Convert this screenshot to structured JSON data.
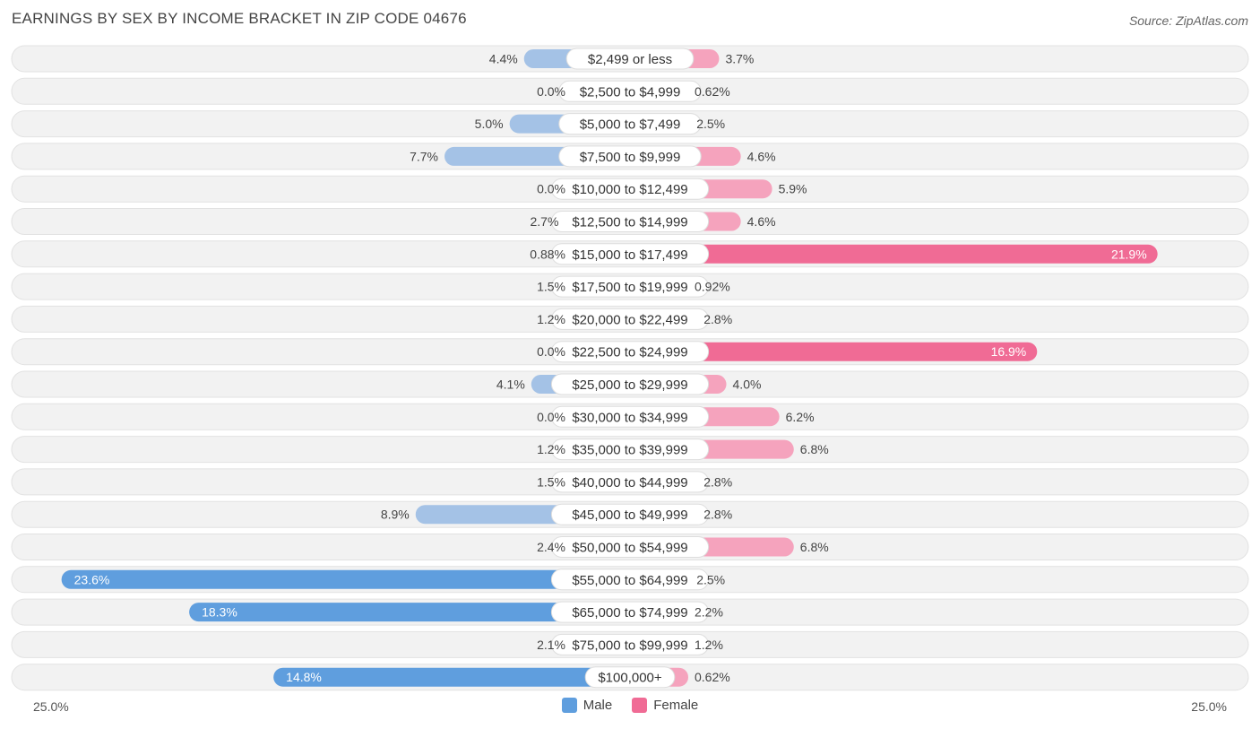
{
  "header": {
    "title": "EARNINGS BY SEX BY INCOME BRACKET IN ZIP CODE 04676",
    "source": "Source: ZipAtlas.com"
  },
  "axis": {
    "left_label": "25.0%",
    "right_label": "25.0%"
  },
  "legend": {
    "male_label": "Male",
    "female_label": "Female"
  },
  "colors": {
    "male": "#a4c2e6",
    "male_strong": "#5f9ede",
    "female": "#f5a3bd",
    "female_strong": "#f06b95",
    "row_bg": "#f2f2f2"
  },
  "chart_data": {
    "type": "bar",
    "orientation": "horizontal-diverging",
    "title": "EARNINGS BY SEX BY INCOME BRACKET IN ZIP CODE 04676",
    "xlim": [
      -25,
      25
    ],
    "categories": [
      "$2,499 or less",
      "$2,500 to $4,999",
      "$5,000 to $7,499",
      "$7,500 to $9,999",
      "$10,000 to $12,499",
      "$12,500 to $14,999",
      "$15,000 to $17,499",
      "$17,500 to $19,999",
      "$20,000 to $22,499",
      "$22,500 to $24,999",
      "$25,000 to $29,999",
      "$30,000 to $34,999",
      "$35,000 to $39,999",
      "$40,000 to $44,999",
      "$45,000 to $49,999",
      "$50,000 to $54,999",
      "$55,000 to $64,999",
      "$65,000 to $74,999",
      "$75,000 to $99,999",
      "$100,000+"
    ],
    "series": [
      {
        "name": "Male",
        "values": [
          4.4,
          0.0,
          5.0,
          7.7,
          0.0,
          2.7,
          0.88,
          1.5,
          1.2,
          0.0,
          4.1,
          0.0,
          1.2,
          1.5,
          8.9,
          2.4,
          23.6,
          18.3,
          2.1,
          14.8
        ],
        "labels": [
          "4.4%",
          "0.0%",
          "5.0%",
          "7.7%",
          "0.0%",
          "2.7%",
          "0.88%",
          "1.5%",
          "1.2%",
          "0.0%",
          "4.1%",
          "0.0%",
          "1.2%",
          "1.5%",
          "8.9%",
          "2.4%",
          "23.6%",
          "18.3%",
          "2.1%",
          "14.8%"
        ]
      },
      {
        "name": "Female",
        "values": [
          3.7,
          0.62,
          2.5,
          4.6,
          5.9,
          4.6,
          21.9,
          0.92,
          2.8,
          16.9,
          4.0,
          6.2,
          6.8,
          2.8,
          2.8,
          6.8,
          2.5,
          2.2,
          1.2,
          0.62
        ],
        "labels": [
          "3.7%",
          "0.62%",
          "2.5%",
          "4.6%",
          "5.9%",
          "4.6%",
          "21.9%",
          "0.92%",
          "2.8%",
          "16.9%",
          "4.0%",
          "6.2%",
          "6.8%",
          "2.8%",
          "2.8%",
          "6.8%",
          "2.5%",
          "2.2%",
          "1.2%",
          "0.62%"
        ]
      }
    ]
  }
}
